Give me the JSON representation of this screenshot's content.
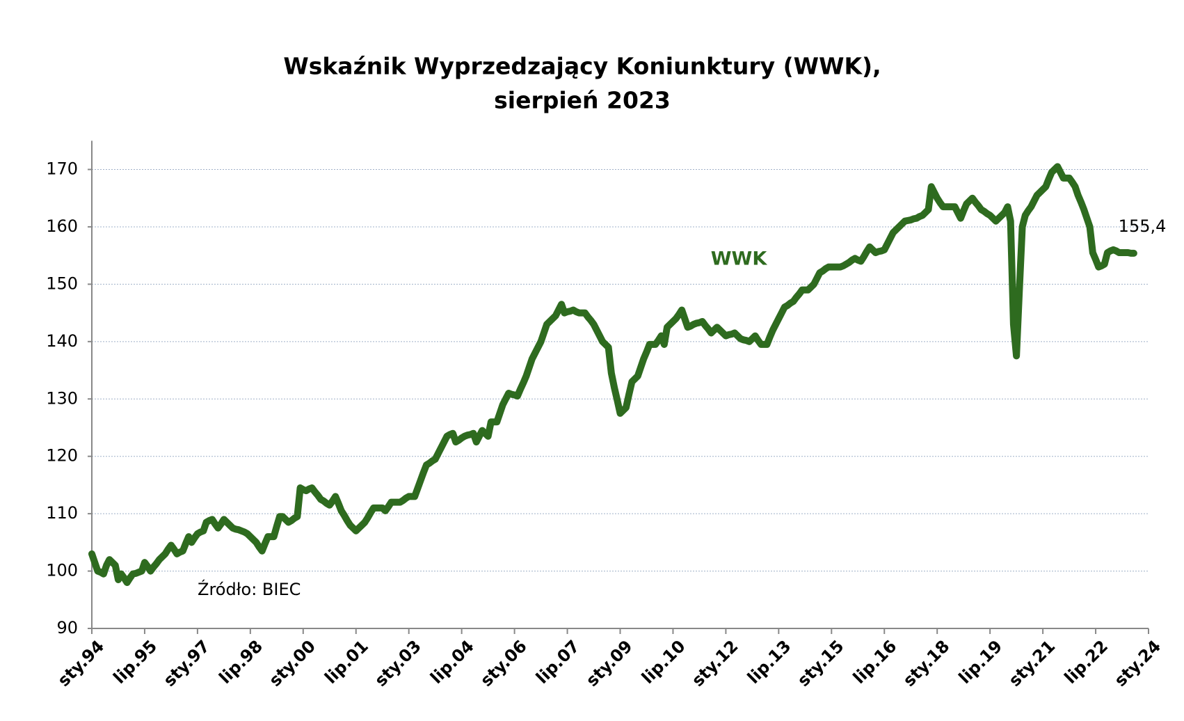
{
  "chart_data": {
    "type": "line",
    "title": "Wskaźnik Wyprzedzający Koniunktury (WWK),",
    "subtitle": "sierpień 2023",
    "annotations": [
      "Źródło: BIEC"
    ],
    "ylim": [
      90,
      175
    ],
    "yticks": [
      90,
      100,
      110,
      120,
      130,
      140,
      150,
      160,
      170
    ],
    "grid": true,
    "categories": [
      "sty.94",
      null,
      null,
      null,
      null,
      null,
      null,
      null,
      null,
      null,
      null,
      null,
      null,
      null,
      null,
      null,
      null,
      null,
      "lip.95",
      null,
      null,
      null,
      null,
      null,
      null,
      null,
      null,
      null,
      null,
      null,
      null,
      null,
      null,
      null,
      null,
      null,
      "sty.97",
      null,
      null,
      null,
      null,
      null,
      null,
      null,
      null,
      null,
      null,
      null,
      null,
      null,
      null,
      null,
      null,
      null,
      "lip.98",
      null,
      null,
      null,
      null,
      null,
      null,
      null,
      null,
      null,
      null,
      null,
      null,
      null,
      null,
      null,
      null,
      null,
      "sty.00",
      null,
      null,
      null,
      null,
      null,
      null,
      null,
      null,
      null,
      null,
      null,
      null,
      null,
      null,
      null,
      null,
      null,
      "lip.01",
      null,
      null,
      null,
      null,
      null,
      null,
      null,
      null,
      null,
      null,
      null,
      null,
      null,
      null,
      null,
      null,
      null,
      "sty.03",
      null,
      null,
      null,
      null,
      null,
      null,
      null,
      null,
      null,
      null,
      null,
      null,
      null,
      null,
      null,
      null,
      null,
      "lip.04",
      null,
      null,
      null,
      null,
      null,
      null,
      null,
      null,
      null,
      null,
      null,
      null,
      null,
      null,
      null,
      null,
      null,
      "sty.06",
      null,
      null,
      null,
      null,
      null,
      null,
      null,
      null,
      null,
      null,
      null,
      null,
      null,
      null,
      null,
      null,
      null,
      "lip.07",
      null,
      null,
      null,
      null,
      null,
      null,
      null,
      null,
      null,
      null,
      null,
      null,
      null,
      null,
      null,
      null,
      null,
      "sty.09",
      null,
      null,
      null,
      null,
      null,
      null,
      null,
      null,
      null,
      null,
      null,
      null,
      null,
      null,
      null,
      null,
      null,
      "lip.10",
      null,
      null,
      null,
      null,
      null,
      null,
      null,
      null,
      null,
      null,
      null,
      null,
      null,
      null,
      null,
      null,
      null,
      "sty.12",
      null,
      null,
      null,
      null,
      null,
      null,
      null,
      null,
      null,
      null,
      null,
      null,
      null,
      null,
      null,
      null,
      null,
      "lip.13",
      null,
      null,
      null,
      null,
      null,
      null,
      null,
      null,
      null,
      null,
      null,
      null,
      null,
      null,
      null,
      null,
      null,
      "sty.15",
      null,
      null,
      null,
      null,
      null,
      null,
      null,
      null,
      null,
      null,
      null,
      null,
      null,
      null,
      null,
      null,
      null,
      "lip.16",
      null,
      null,
      null,
      null,
      null,
      null,
      null,
      null,
      null,
      null,
      null,
      null,
      null,
      null,
      null,
      null,
      null,
      "sty.18",
      null,
      null,
      null,
      null,
      null,
      null,
      null,
      null,
      null,
      null,
      null,
      null,
      null,
      null,
      null,
      null,
      null,
      "lip.19",
      null,
      null,
      null,
      null,
      null,
      null,
      null,
      null,
      null,
      null,
      null,
      null,
      null,
      null,
      null,
      null,
      null,
      "sty.21",
      null,
      null,
      null,
      null,
      null,
      null,
      null,
      null,
      null,
      null,
      null,
      null,
      null,
      null,
      null,
      null,
      null,
      "lip.22",
      null,
      null,
      null,
      null,
      null,
      null,
      null,
      null,
      null,
      null,
      null,
      null,
      null,
      null,
      null,
      null,
      null,
      "sty.24"
    ],
    "series": [
      {
        "name": "WWK",
        "color": "#2e6b1f",
        "values": [
          103,
          101.5,
          100,
          99.8,
          99.5,
          101,
          102,
          101.5,
          101,
          98.5,
          99.5,
          98.8,
          98,
          98.8,
          99.5,
          99.6,
          99.8,
          100,
          101.5,
          100.8,
          100,
          100.7,
          101.3,
          102,
          102.5,
          103,
          103.8,
          104.5,
          103.8,
          103,
          103.3,
          103.5,
          104.8,
          106,
          105,
          105.8,
          106.5,
          106.8,
          107,
          108.5,
          108.8,
          109,
          108.2,
          107.5,
          108.2,
          109,
          108.5,
          108,
          107.5,
          107.3,
          107.2,
          107,
          106.8,
          106.5,
          106,
          105.5,
          105,
          104.2,
          103.5,
          104.8,
          106,
          106,
          106,
          107.8,
          109.5,
          109.5,
          109,
          108.5,
          108.8,
          109.2,
          109.5,
          114.5,
          114.2,
          114,
          114.3,
          114.5,
          113.8,
          113.2,
          112.5,
          112.2,
          111.8,
          111.5,
          112.2,
          113,
          111.8,
          110.5,
          109.7,
          108.8,
          108,
          107.5,
          107,
          107.5,
          108,
          108.5,
          109.3,
          110.2,
          111,
          111,
          111,
          111,
          110.5,
          111.2,
          112,
          112,
          112,
          112,
          112.3,
          112.7,
          113,
          113,
          113,
          114.4,
          115.8,
          117.2,
          118.5,
          118.8,
          119.2,
          119.5,
          120.5,
          121.5,
          122.5,
          123.5,
          123.8,
          124,
          122.5,
          122.8,
          123.2,
          123.5,
          123.7,
          123.8,
          124,
          122.5,
          123.5,
          124.5,
          124,
          123.5,
          126,
          126,
          126,
          127.5,
          129,
          130,
          131,
          130.8,
          130.7,
          130.5,
          131.7,
          132.8,
          134,
          135.5,
          137,
          138,
          139,
          140,
          141.5,
          143,
          143.5,
          144,
          144.5,
          145.5,
          146.5,
          145,
          145.2,
          145.3,
          145.5,
          145.2,
          145,
          145,
          145,
          144.3,
          143.7,
          143,
          142,
          141,
          140,
          139.5,
          139,
          134.5,
          132,
          129.8,
          127.5,
          128,
          128.5,
          130.8,
          133,
          133.5,
          134,
          135.5,
          137,
          138.2,
          139.5,
          139.5,
          139.5,
          140.2,
          141,
          139.5,
          142.5,
          143,
          143.5,
          144,
          144.7,
          145.5,
          144,
          142.5,
          142.7,
          143,
          143.2,
          143.3,
          143.5,
          142.8,
          142.2,
          141.5,
          142,
          142.5,
          142,
          141.5,
          141,
          141.2,
          141.3,
          141.5,
          141,
          140.5,
          140.3,
          140.2,
          140,
          140.5,
          141,
          140.2,
          139.5,
          139.5,
          139.5,
          140.8,
          142,
          143,
          144,
          145,
          146,
          146.3,
          146.7,
          147,
          147.7,
          148.3,
          149,
          149,
          149,
          149.5,
          150,
          151,
          152,
          152.3,
          152.7,
          153,
          153,
          153,
          153,
          153,
          153.2,
          153.5,
          153.8,
          154.2,
          154.5,
          154.2,
          154,
          154.8,
          155.7,
          156.5,
          156,
          155.5,
          155.7,
          155.8,
          156,
          157,
          158,
          159,
          159.5,
          160,
          160.5,
          161,
          161.1,
          161.2,
          161.4,
          161.5,
          161.8,
          162,
          162.5,
          163,
          167,
          166,
          165,
          164.2,
          163.5,
          163.5,
          163.5,
          163.5,
          163.5,
          162.5,
          161.5,
          162.8,
          164,
          164.5,
          165,
          164.3,
          163.7,
          163,
          162.7,
          162.3,
          162,
          161.5,
          161,
          161.5,
          162,
          162.5,
          163.5,
          161,
          143,
          137.5,
          149,
          160,
          162,
          162.8,
          163.5,
          164.5,
          165.5,
          166,
          166.5,
          167,
          168.3,
          169.5,
          170,
          170.5,
          169.5,
          168.5,
          168.5,
          168.5,
          167.8,
          167,
          165.5,
          164.3,
          163,
          161.5,
          160,
          155.5,
          154.3,
          153,
          153.2,
          153.5,
          155.5,
          155.8,
          156,
          155.8,
          155.5,
          155.5,
          155.5,
          155.5,
          155.4,
          155.4,
          null,
          null,
          null,
          null,
          null
        ],
        "value_labels": [
          null,
          null,
          null,
          null,
          null,
          null,
          null,
          null,
          null,
          null,
          null,
          null,
          null,
          null,
          null,
          null,
          null,
          null,
          null,
          null,
          null,
          null,
          null,
          null,
          null,
          null,
          null,
          null,
          null,
          null,
          null,
          null,
          null,
          null,
          null,
          null,
          null,
          null,
          null,
          null,
          null,
          null,
          null,
          null,
          null,
          null,
          null,
          null,
          null,
          null,
          null,
          null,
          null,
          null,
          null,
          null,
          null,
          null,
          null,
          null,
          null,
          null,
          null,
          null,
          null,
          null,
          null,
          null,
          null,
          null,
          null,
          null,
          null,
          null,
          null,
          null,
          null,
          null,
          null,
          null,
          null,
          null,
          null,
          null,
          null,
          null,
          null,
          null,
          null,
          null,
          null,
          null,
          null,
          null,
          null,
          null,
          null,
          null,
          null,
          null,
          null,
          null,
          null,
          null,
          null,
          null,
          null,
          null,
          null,
          null,
          null,
          null,
          null,
          null,
          null,
          null,
          null,
          null,
          null,
          null,
          null,
          null,
          null,
          null,
          null,
          null,
          null,
          null,
          null,
          null,
          null,
          null,
          null,
          null,
          null,
          null,
          null,
          null,
          null,
          null,
          null,
          null,
          null,
          null,
          null,
          null,
          null,
          null,
          null,
          null,
          null,
          null,
          null,
          null,
          null,
          null,
          null,
          null,
          null,
          null,
          null,
          null,
          null,
          null,
          null,
          null,
          null,
          null,
          null,
          null,
          null,
          null,
          null,
          null,
          null,
          null,
          null,
          null,
          null,
          null,
          null,
          null,
          null,
          null,
          null,
          null,
          null,
          null,
          null,
          null,
          null,
          null,
          null,
          null,
          null,
          null,
          null,
          null,
          null,
          null,
          null,
          null,
          null,
          null,
          null,
          null,
          null,
          null,
          null,
          null,
          null,
          null,
          null,
          null,
          null,
          null,
          null,
          null,
          null,
          null,
          null,
          null,
          null,
          null,
          null,
          null,
          null,
          null,
          null,
          null,
          null,
          null,
          null,
          null,
          null,
          null,
          null,
          null,
          null,
          null,
          null,
          null,
          null,
          null,
          null,
          null,
          null,
          null,
          null,
          null,
          null,
          null,
          null,
          null,
          null,
          null,
          null,
          null,
          null,
          null,
          null,
          null,
          null,
          null,
          null,
          null,
          null,
          null,
          null,
          null,
          null,
          null,
          null,
          null,
          null,
          null,
          null,
          null,
          null,
          null,
          null,
          null,
          null,
          null,
          null,
          null,
          null,
          null,
          null,
          null,
          null,
          null,
          null,
          null,
          null,
          null,
          null,
          null,
          null,
          null,
          null,
          null,
          null,
          null,
          null,
          null,
          null,
          null,
          null,
          null,
          null,
          null,
          null,
          null,
          null,
          null,
          null,
          null,
          null,
          null,
          null,
          null,
          null,
          null,
          null,
          null,
          null,
          null,
          null,
          null,
          null,
          null,
          null,
          null,
          null,
          null,
          null,
          null,
          null,
          null,
          null,
          null,
          null,
          null,
          null,
          null,
          null,
          null,
          null,
          null,
          null,
          null,
          null,
          null,
          "155,4",
          null,
          null,
          null,
          null,
          null,
          null
        ]
      }
    ]
  }
}
